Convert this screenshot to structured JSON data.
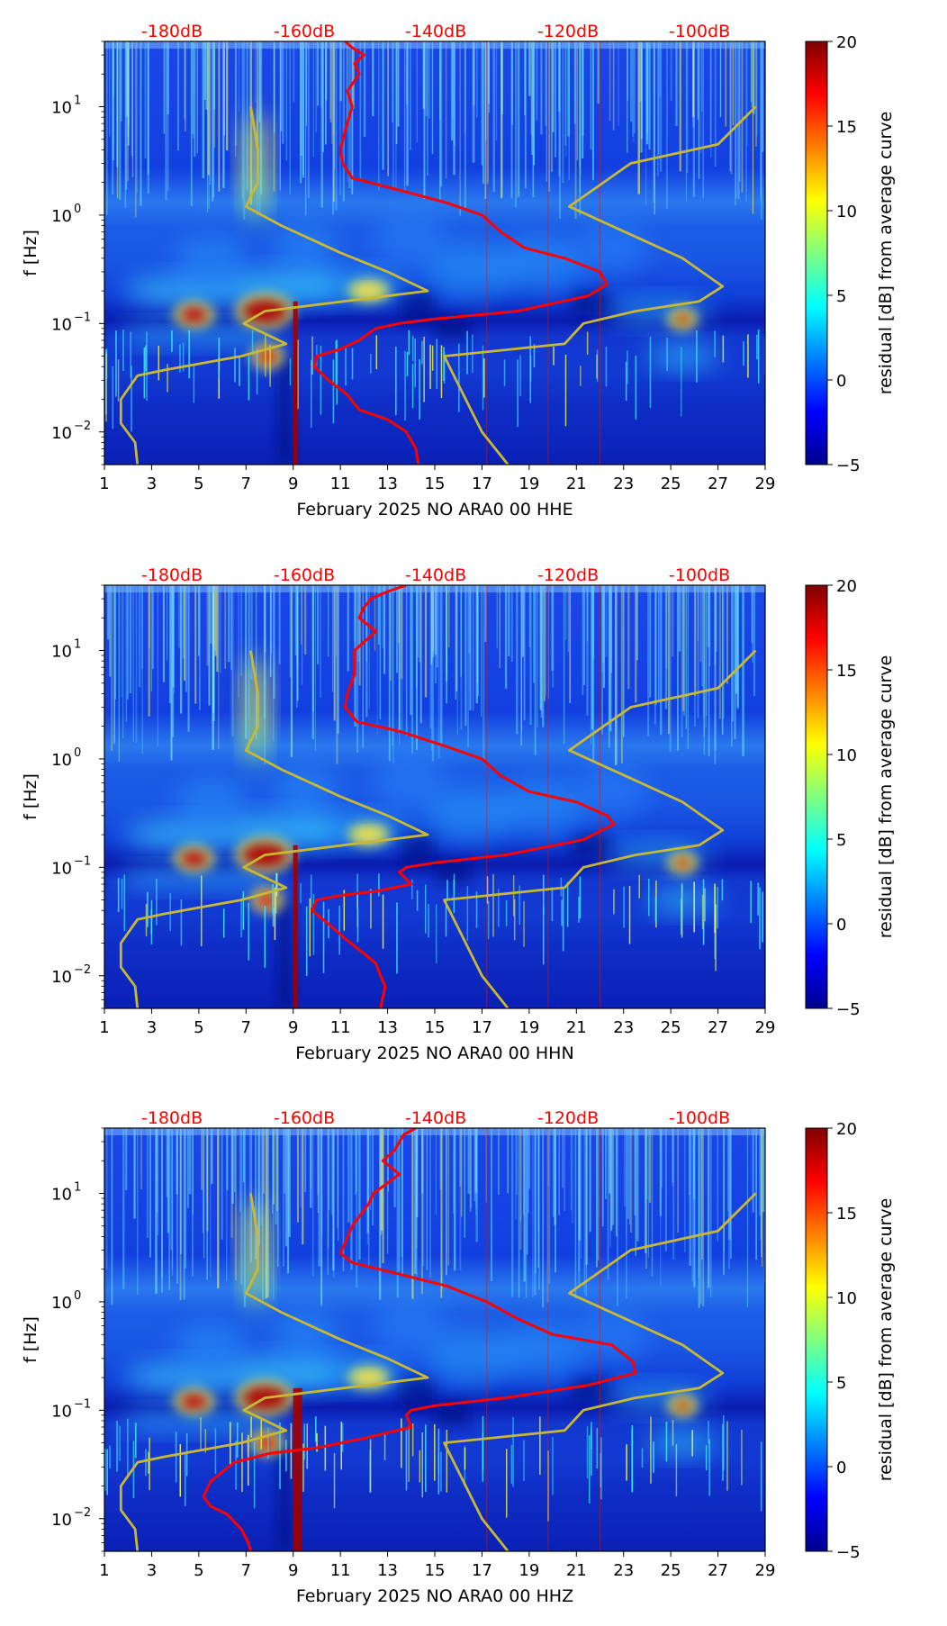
{
  "chart_data": [
    {
      "type": "heatmap",
      "subtype": "spectrogram",
      "xlabel": "February 2025 NO ARA0 00 HHE",
      "ylabel": "f [Hz]",
      "x_ticks": [
        "1",
        "3",
        "5",
        "7",
        "9",
        "11",
        "13",
        "15",
        "17",
        "19",
        "21",
        "23",
        "25",
        "27",
        "29"
      ],
      "x_range": [
        1,
        29
      ],
      "y_scale": "log",
      "y_range": [
        0.005,
        40
      ],
      "y_ticks": [
        {
          "value": 0.01,
          "base": "10",
          "exp": "−2"
        },
        {
          "value": 0.1,
          "base": "10",
          "exp": "−1"
        },
        {
          "value": 1,
          "base": "10",
          "exp": "0"
        },
        {
          "value": 10,
          "base": "10",
          "exp": "1"
        }
      ],
      "top_labels": [
        "-180dB",
        "-160dB",
        "-140dB",
        "-120dB",
        "-100dB"
      ],
      "colorbar": {
        "label": "residual [dB] from average curve",
        "min": -5,
        "max": 20,
        "ticks": [
          "−5",
          "0",
          "5",
          "10",
          "15",
          "20"
        ]
      },
      "colors": {
        "red_curve": "#ff0000",
        "model_curve": "#c8b832",
        "db_label": "#ff0000"
      },
      "series": [
        {
          "name": "average curve (red)",
          "points": [
            [
              11.2,
              40
            ],
            [
              11.5,
              35
            ],
            [
              12,
              30
            ],
            [
              11.6,
              25
            ],
            [
              11.8,
              20
            ],
            [
              11.3,
              14
            ],
            [
              11.5,
              10
            ],
            [
              11.2,
              6
            ],
            [
              11,
              4
            ],
            [
              11.1,
              3
            ],
            [
              11.5,
              2.2
            ],
            [
              13.5,
              1.7
            ],
            [
              15.5,
              1.3
            ],
            [
              17,
              1.0
            ],
            [
              17.8,
              0.7
            ],
            [
              18.8,
              0.5
            ],
            [
              20.5,
              0.4
            ],
            [
              22,
              0.3
            ],
            [
              22.3,
              0.23
            ],
            [
              21.5,
              0.18
            ],
            [
              18.5,
              0.13
            ],
            [
              15,
              0.11
            ],
            [
              13.5,
              0.1
            ],
            [
              12.5,
              0.09
            ],
            [
              11.8,
              0.07
            ],
            [
              11,
              0.058
            ],
            [
              10,
              0.05
            ],
            [
              9.9,
              0.04
            ],
            [
              10.5,
              0.03
            ],
            [
              11.3,
              0.022
            ],
            [
              11.8,
              0.016
            ],
            [
              13,
              0.013
            ],
            [
              13.8,
              0.01
            ],
            [
              14.2,
              0.007
            ],
            [
              14.3,
              0.005
            ]
          ]
        },
        {
          "name": "low noise model (yellow)",
          "points": [
            [
              2.4,
              0.005
            ],
            [
              2.3,
              0.008
            ],
            [
              1.7,
              0.012
            ],
            [
              1.7,
              0.02
            ],
            [
              2.4,
              0.033
            ],
            [
              3.5,
              0.037
            ],
            [
              6.8,
              0.05
            ],
            [
              8.7,
              0.065
            ],
            [
              6.9,
              0.1
            ],
            [
              7.8,
              0.13
            ],
            [
              14.7,
              0.2
            ],
            [
              13,
              0.3
            ],
            [
              11,
              0.45
            ],
            [
              8.5,
              0.8
            ],
            [
              7,
              1.2
            ],
            [
              7.5,
              2
            ],
            [
              7.5,
              4
            ],
            [
              7.2,
              10
            ]
          ]
        },
        {
          "name": "high noise model (yellow)",
          "points": [
            [
              18.1,
              0.005
            ],
            [
              17,
              0.01
            ],
            [
              15.4,
              0.05
            ],
            [
              20.5,
              0.065
            ],
            [
              21.3,
              0.1
            ],
            [
              23.5,
              0.13
            ],
            [
              26.2,
              0.16
            ],
            [
              27.2,
              0.22
            ],
            [
              25.5,
              0.4
            ],
            [
              20.7,
              1.2
            ],
            [
              23.3,
              3
            ],
            [
              27,
              4.5
            ],
            [
              28.6,
              10
            ]
          ]
        }
      ]
    },
    {
      "type": "heatmap",
      "subtype": "spectrogram",
      "xlabel": "February 2025 NO ARA0 00 HHN",
      "ylabel": "f [Hz]",
      "x_ticks": [
        "1",
        "3",
        "5",
        "7",
        "9",
        "11",
        "13",
        "15",
        "17",
        "19",
        "21",
        "23",
        "25",
        "27",
        "29"
      ],
      "x_range": [
        1,
        29
      ],
      "y_scale": "log",
      "y_range": [
        0.005,
        40
      ],
      "y_ticks": [
        {
          "value": 0.01,
          "base": "10",
          "exp": "−2"
        },
        {
          "value": 0.1,
          "base": "10",
          "exp": "−1"
        },
        {
          "value": 1,
          "base": "10",
          "exp": "0"
        },
        {
          "value": 10,
          "base": "10",
          "exp": "1"
        }
      ],
      "top_labels": [
        "-180dB",
        "-160dB",
        "-140dB",
        "-120dB",
        "-100dB"
      ],
      "colorbar": {
        "label": "residual [dB] from average curve",
        "min": -5,
        "max": 20,
        "ticks": [
          "−5",
          "0",
          "5",
          "10",
          "15",
          "20"
        ]
      },
      "colors": {
        "red_curve": "#ff0000",
        "model_curve": "#c8b832",
        "db_label": "#ff0000"
      },
      "series": [
        {
          "name": "average curve (red)",
          "points": [
            [
              13.8,
              40
            ],
            [
              13,
              35
            ],
            [
              12.3,
              30
            ],
            [
              12,
              25
            ],
            [
              11.8,
              20
            ],
            [
              12.5,
              15
            ],
            [
              11.6,
              10
            ],
            [
              11.6,
              6
            ],
            [
              11.3,
              4
            ],
            [
              11.2,
              3
            ],
            [
              11.7,
              2.2
            ],
            [
              13.5,
              1.8
            ],
            [
              15.5,
              1.3
            ],
            [
              17,
              1.0
            ],
            [
              17.8,
              0.7
            ],
            [
              19,
              0.5
            ],
            [
              21,
              0.4
            ],
            [
              22.3,
              0.3
            ],
            [
              22.6,
              0.25
            ],
            [
              21.3,
              0.18
            ],
            [
              18,
              0.13
            ],
            [
              15,
              0.11
            ],
            [
              13.8,
              0.1
            ],
            [
              13.5,
              0.09
            ],
            [
              14,
              0.07
            ],
            [
              12.5,
              0.06
            ],
            [
              11,
              0.055
            ],
            [
              10,
              0.05
            ],
            [
              9.8,
              0.04
            ],
            [
              10.5,
              0.03
            ],
            [
              11.2,
              0.022
            ],
            [
              12,
              0.016
            ],
            [
              12.5,
              0.013
            ],
            [
              12.7,
              0.01
            ],
            [
              12.9,
              0.008
            ],
            [
              12.7,
              0.005
            ]
          ]
        },
        {
          "name": "low noise model (yellow)",
          "points": [
            [
              2.4,
              0.005
            ],
            [
              2.3,
              0.008
            ],
            [
              1.7,
              0.012
            ],
            [
              1.7,
              0.02
            ],
            [
              2.4,
              0.033
            ],
            [
              3.5,
              0.037
            ],
            [
              6.8,
              0.05
            ],
            [
              8.7,
              0.065
            ],
            [
              6.9,
              0.1
            ],
            [
              7.8,
              0.13
            ],
            [
              14.7,
              0.2
            ],
            [
              13,
              0.3
            ],
            [
              11,
              0.45
            ],
            [
              8.5,
              0.8
            ],
            [
              7,
              1.2
            ],
            [
              7.5,
              2
            ],
            [
              7.5,
              4
            ],
            [
              7.2,
              10
            ]
          ]
        },
        {
          "name": "high noise model (yellow)",
          "points": [
            [
              18.1,
              0.005
            ],
            [
              17,
              0.01
            ],
            [
              15.4,
              0.05
            ],
            [
              20.5,
              0.065
            ],
            [
              21.3,
              0.1
            ],
            [
              23.5,
              0.13
            ],
            [
              26.2,
              0.16
            ],
            [
              27.2,
              0.22
            ],
            [
              25.5,
              0.4
            ],
            [
              20.7,
              1.2
            ],
            [
              23.3,
              3
            ],
            [
              27,
              4.5
            ],
            [
              28.6,
              10
            ]
          ]
        }
      ]
    },
    {
      "type": "heatmap",
      "subtype": "spectrogram",
      "xlabel": "February 2025 NO ARA0 00 HHZ",
      "ylabel": "f [Hz]",
      "x_ticks": [
        "1",
        "3",
        "5",
        "7",
        "9",
        "11",
        "13",
        "15",
        "17",
        "19",
        "21",
        "23",
        "25",
        "27",
        "29"
      ],
      "x_range": [
        1,
        29
      ],
      "y_scale": "log",
      "y_range": [
        0.005,
        40
      ],
      "y_ticks": [
        {
          "value": 0.01,
          "base": "10",
          "exp": "−2"
        },
        {
          "value": 0.1,
          "base": "10",
          "exp": "−1"
        },
        {
          "value": 1,
          "base": "10",
          "exp": "0"
        },
        {
          "value": 10,
          "base": "10",
          "exp": "1"
        }
      ],
      "top_labels": [
        "-180dB",
        "-160dB",
        "-140dB",
        "-120dB",
        "-100dB"
      ],
      "colorbar": {
        "label": "residual [dB] from average curve",
        "min": -5,
        "max": 20,
        "ticks": [
          "−5",
          "0",
          "5",
          "10",
          "15",
          "20"
        ]
      },
      "colors": {
        "red_curve": "#ff0000",
        "model_curve": "#c8b832",
        "db_label": "#ff0000"
      },
      "series": [
        {
          "name": "average curve (red)",
          "points": [
            [
              14.2,
              40
            ],
            [
              13.7,
              35
            ],
            [
              13.5,
              30
            ],
            [
              13.3,
              25
            ],
            [
              12.8,
              20
            ],
            [
              13.5,
              15
            ],
            [
              12.4,
              10
            ],
            [
              12.2,
              8
            ],
            [
              11.5,
              5
            ],
            [
              11.2,
              3.5
            ],
            [
              11,
              2.8
            ],
            [
              11.5,
              2.3
            ],
            [
              13.5,
              1.8
            ],
            [
              15.5,
              1.4
            ],
            [
              17.2,
              1.0
            ],
            [
              18.5,
              0.7
            ],
            [
              20,
              0.5
            ],
            [
              22.5,
              0.4
            ],
            [
              23.4,
              0.28
            ],
            [
              23.5,
              0.22
            ],
            [
              21.5,
              0.17
            ],
            [
              18,
              0.13
            ],
            [
              15,
              0.11
            ],
            [
              14,
              0.1
            ],
            [
              13.8,
              0.09
            ],
            [
              14,
              0.07
            ],
            [
              12,
              0.055
            ],
            [
              10,
              0.045
            ],
            [
              8,
              0.04
            ],
            [
              6.5,
              0.033
            ],
            [
              5.5,
              0.022
            ],
            [
              5.2,
              0.016
            ],
            [
              5.5,
              0.013
            ],
            [
              6.2,
              0.011
            ],
            [
              6.8,
              0.008
            ],
            [
              7.1,
              0.006
            ],
            [
              7.2,
              0.005
            ]
          ]
        },
        {
          "name": "low noise model (yellow)",
          "points": [
            [
              2.4,
              0.005
            ],
            [
              2.3,
              0.008
            ],
            [
              1.7,
              0.012
            ],
            [
              1.7,
              0.02
            ],
            [
              2.4,
              0.033
            ],
            [
              3.5,
              0.037
            ],
            [
              6.8,
              0.05
            ],
            [
              8.7,
              0.065
            ],
            [
              6.9,
              0.1
            ],
            [
              7.8,
              0.13
            ],
            [
              14.7,
              0.2
            ],
            [
              13,
              0.3
            ],
            [
              11,
              0.45
            ],
            [
              8.5,
              0.8
            ],
            [
              7,
              1.2
            ],
            [
              7.5,
              2
            ],
            [
              7.5,
              4
            ],
            [
              7.2,
              10
            ]
          ]
        },
        {
          "name": "high noise model (yellow)",
          "points": [
            [
              18.1,
              0.005
            ],
            [
              17,
              0.01
            ],
            [
              15.4,
              0.05
            ],
            [
              20.5,
              0.065
            ],
            [
              21.3,
              0.1
            ],
            [
              23.5,
              0.13
            ],
            [
              26.2,
              0.16
            ],
            [
              27.2,
              0.22
            ],
            [
              25.5,
              0.4
            ],
            [
              20.7,
              1.2
            ],
            [
              23.3,
              3
            ],
            [
              27,
              4.5
            ],
            [
              28.6,
              10
            ]
          ]
        }
      ]
    }
  ]
}
